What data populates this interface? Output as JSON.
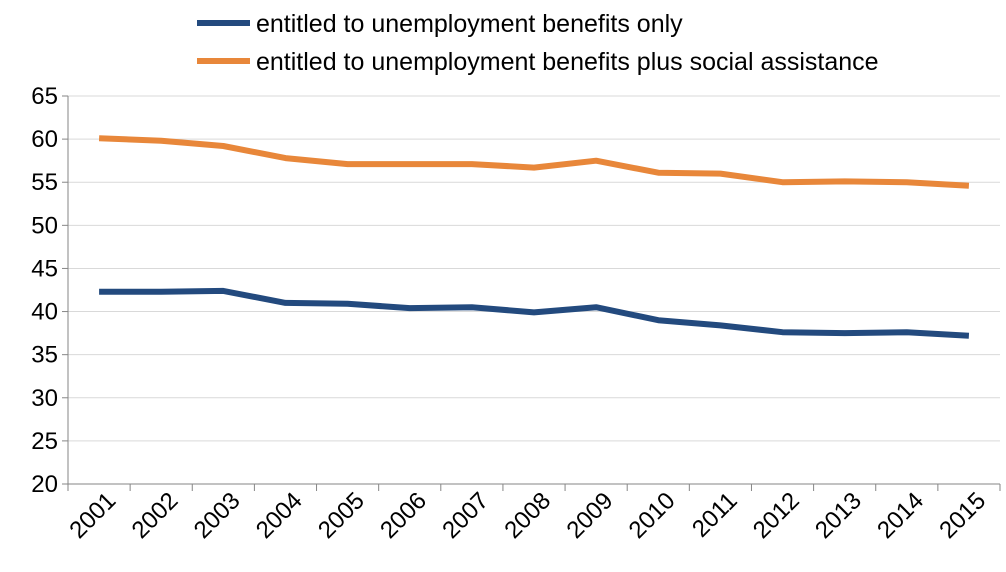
{
  "chart_data": {
    "type": "line",
    "categories": [
      "2001",
      "2002",
      "2003",
      "2004",
      "2005",
      "2006",
      "2007",
      "2008",
      "2009",
      "2010",
      "2011",
      "2012",
      "2013",
      "2014",
      "2015"
    ],
    "series": [
      {
        "name": "entitled to unemployment benefits only",
        "color": "#234a7e",
        "values": [
          42.3,
          42.3,
          42.4,
          41.0,
          40.9,
          40.4,
          40.5,
          39.9,
          40.5,
          39.0,
          38.4,
          37.6,
          37.5,
          37.6,
          37.2
        ]
      },
      {
        "name": "entitled to unemployment benefits plus social assistance",
        "color": "#e8873a",
        "values": [
          60.1,
          59.8,
          59.2,
          57.8,
          57.1,
          57.1,
          57.1,
          56.7,
          57.5,
          56.1,
          56.0,
          55.0,
          55.1,
          55.0,
          54.6
        ]
      }
    ],
    "ylim": [
      20,
      65
    ],
    "yticks": [
      20,
      25,
      30,
      35,
      40,
      45,
      50,
      55,
      60,
      65
    ],
    "grid": true,
    "legend_position": "top-center"
  }
}
